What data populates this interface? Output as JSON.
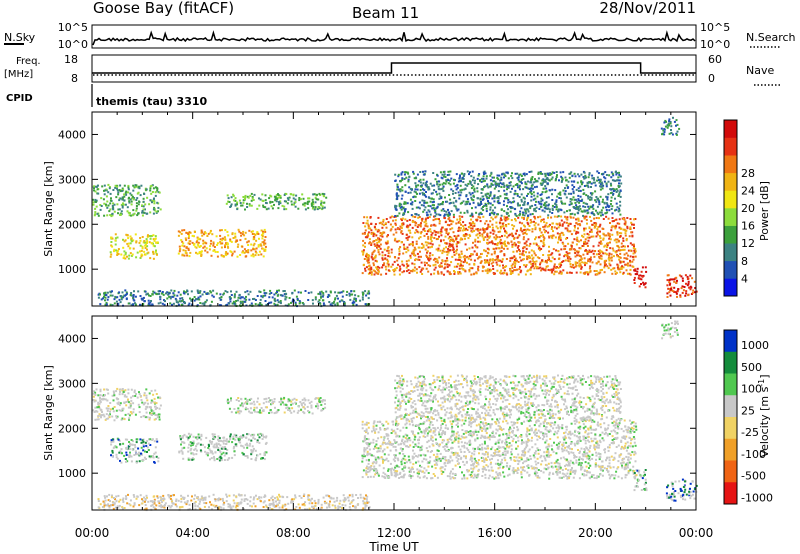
{
  "header": {
    "station": "Goose Bay (fitACF)",
    "beam": "Beam 11",
    "date": "28/Nov/2011"
  },
  "strip_labels": {
    "nsky": "N.Sky",
    "nsky_ticks": [
      "10^5",
      "10^0"
    ],
    "nsearch": "N.Search",
    "nsearch_ticks": [
      "10^5",
      "10^0"
    ],
    "freq_label": "Freq.",
    "freq_unit": "[MHz]",
    "freq_ticks": [
      "18",
      "8"
    ],
    "nave": "Nave",
    "nave_ticks": [
      "60",
      "0"
    ],
    "cpid_label": "CPID",
    "cpid_value": "themis (tau) 3310"
  },
  "chart_data": [
    {
      "type": "heatmap",
      "title": "",
      "ylabel": "Slant Range [km]",
      "xlabel": "",
      "x_ticks": [
        "00:00",
        "04:00",
        "08:00",
        "12:00",
        "16:00",
        "20:00",
        "00:00"
      ],
      "y_ticks": [
        1000,
        2000,
        3000,
        4000
      ],
      "ylim": [
        180,
        4500
      ],
      "xlim_hours": [
        0,
        24
      ],
      "colorbar": {
        "label": "Power [dB]",
        "ticks": [
          "4",
          "8",
          "12",
          "16",
          "20",
          "24",
          "28"
        ],
        "colors": [
          "#0a14e6",
          "#2050b4",
          "#3c8282",
          "#3ca03c",
          "#8cdc3c",
          "#f0e614",
          "#f0b414",
          "#f07814",
          "#e63214",
          "#d20a0a"
        ]
      },
      "features": [
        {
          "t0": 0.0,
          "t1": 2.7,
          "r0": 2200,
          "r1": 2900,
          "level": 3
        },
        {
          "t0": 0.7,
          "t1": 2.6,
          "r0": 1250,
          "r1": 1800,
          "level": 5
        },
        {
          "t0": 3.4,
          "t1": 6.9,
          "r0": 1300,
          "r1": 1900,
          "level": 6
        },
        {
          "t0": 5.3,
          "t1": 9.3,
          "r0": 2350,
          "r1": 2700,
          "level": 3
        },
        {
          "t0": 0.2,
          "t1": 11.0,
          "r0": 200,
          "r1": 550,
          "level": 2
        },
        {
          "t0": 10.7,
          "t1": 21.6,
          "r0": 900,
          "r1": 2200,
          "level": 7
        },
        {
          "t0": 12.0,
          "t1": 21.0,
          "r0": 2200,
          "r1": 3200,
          "level": 2
        },
        {
          "t0": 21.5,
          "t1": 22.0,
          "r0": 600,
          "r1": 1100,
          "level": 9
        },
        {
          "t0": 22.8,
          "t1": 24.0,
          "r0": 400,
          "r1": 900,
          "level": 8
        },
        {
          "t0": 22.6,
          "t1": 23.3,
          "r0": 4000,
          "r1": 4400,
          "level": 2
        }
      ]
    },
    {
      "type": "heatmap",
      "title": "",
      "ylabel": "Slant Range [km]",
      "xlabel": "Time UT",
      "x_ticks": [
        "00:00",
        "04:00",
        "08:00",
        "12:00",
        "16:00",
        "20:00",
        "00:00"
      ],
      "y_ticks": [
        1000,
        2000,
        3000,
        4000
      ],
      "ylim": [
        180,
        4500
      ],
      "xlim_hours": [
        0,
        24
      ],
      "colorbar": {
        "label": "Velocity [m s^-1]",
        "ticks": [
          "1000",
          "500",
          "100",
          "25",
          "-25",
          "-100",
          "-500",
          "-1000"
        ],
        "colors": [
          "#0032c8",
          "#148c3c",
          "#50c850",
          "#c8c8c8",
          "#f0d264",
          "#f0a028",
          "#f06414",
          "#e61414"
        ]
      },
      "features": [
        {
          "t0": 0.0,
          "t1": 2.7,
          "r0": 2200,
          "r1": 2900,
          "level": 3
        },
        {
          "t0": 0.7,
          "t1": 2.6,
          "r0": 1250,
          "r1": 1800,
          "level": 1
        },
        {
          "t0": 3.4,
          "t1": 6.9,
          "r0": 1300,
          "r1": 1900,
          "level": 2
        },
        {
          "t0": 5.3,
          "t1": 9.3,
          "r0": 2350,
          "r1": 2700,
          "level": 3
        },
        {
          "t0": 0.2,
          "t1": 11.0,
          "r0": 200,
          "r1": 550,
          "level": 4
        },
        {
          "t0": 10.7,
          "t1": 21.6,
          "r0": 900,
          "r1": 2200,
          "level": 3
        },
        {
          "t0": 12.0,
          "t1": 21.0,
          "r0": 2200,
          "r1": 3200,
          "level": 3
        },
        {
          "t0": 21.5,
          "t1": 22.0,
          "r0": 600,
          "r1": 1100,
          "level": 1
        },
        {
          "t0": 22.8,
          "t1": 24.0,
          "r0": 400,
          "r1": 900,
          "level": 0
        },
        {
          "t0": 22.6,
          "t1": 23.3,
          "r0": 4000,
          "r1": 4400,
          "level": 3
        }
      ]
    }
  ]
}
